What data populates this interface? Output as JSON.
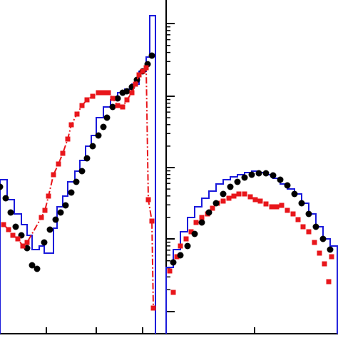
{
  "chart_data": [
    {
      "type": "scatter",
      "xlim": [
        0,
        233
      ],
      "ylim": [
        0,
        468
      ],
      "xticks": [
        65,
        135,
        200
      ],
      "histogram": {
        "color": "#1a1adb",
        "bins": [
          0,
          10,
          20,
          30,
          38,
          45,
          55,
          62,
          75,
          80,
          88,
          95,
          105,
          112,
          120,
          128,
          135,
          145,
          155,
          165,
          175,
          185,
          195,
          205,
          210,
          218
        ],
        "counts": [
          216,
          188,
          168,
          153,
          138,
          118,
          123,
          113,
          148,
          178,
          193,
          213,
          228,
          243,
          263,
          278,
          303,
          318,
          328,
          338,
          343,
          350,
          368,
          388,
          446
        ]
      },
      "series": [
        {
          "color": "#000000",
          "marker": "circle",
          "line": false,
          "x": [
            0,
            8,
            15,
            22,
            30,
            38,
            45,
            52,
            62,
            70,
            78,
            85,
            92,
            100,
            107,
            115,
            122,
            130,
            138,
            145,
            150,
            158,
            165,
            172,
            178,
            185,
            192,
            200,
            207,
            213
          ],
          "values": [
            206,
            190,
            170,
            150,
            138,
            120,
            96,
            91,
            128,
            146,
            160,
            170,
            180,
            198,
            213,
            228,
            246,
            263,
            278,
            290,
            303,
            318,
            330,
            338,
            340,
            346,
            356,
            368,
            378,
            390
          ]
        },
        {
          "color": "#e8161b",
          "marker": "square",
          "line": true,
          "x": [
            5,
            12,
            18,
            25,
            32,
            38,
            58,
            63,
            68,
            75,
            82,
            88,
            95,
            100,
            108,
            115,
            122,
            130,
            138,
            145,
            152,
            158,
            165,
            172,
            178,
            185,
            190,
            195,
            200,
            205,
            208,
            213,
            215
          ],
          "values": [
            153,
            146,
            138,
            133,
            123,
            128,
            163,
            173,
            193,
            223,
            238,
            253,
            273,
            293,
            308,
            320,
            328,
            333,
            338,
            338,
            338,
            330,
            320,
            318,
            328,
            338,
            350,
            363,
            368,
            373,
            188,
            158,
            36
          ]
        }
      ]
    },
    {
      "type": "scatter",
      "xlim": [
        0,
        241
      ],
      "ylim": [
        0,
        468
      ],
      "xticks": [
        124
      ],
      "yticks": [
        31,
        133,
        233,
        333,
        435
      ],
      "histogram": {
        "color": "#1a1adb",
        "bins": [
          0,
          10,
          20,
          30,
          40,
          50,
          60,
          70,
          80,
          90,
          100,
          110,
          120,
          130,
          140,
          150,
          160,
          170,
          180,
          190,
          200,
          210,
          220,
          230,
          240
        ],
        "counts": [
          93,
          118,
          143,
          163,
          178,
          190,
          200,
          210,
          216,
          220,
          223,
          226,
          228,
          226,
          223,
          218,
          210,
          203,
          196,
          183,
          168,
          150,
          133,
          123
        ]
      },
      "series": [
        {
          "color": "#e8161b",
          "marker": "square",
          "line": false,
          "x": [
            5,
            10,
            15,
            20,
            28,
            35,
            42,
            50,
            58,
            65,
            72,
            80,
            88,
            95,
            102,
            110,
            118,
            125,
            132,
            140,
            148,
            155,
            162,
            170,
            178,
            185,
            192,
            200,
            208,
            215,
            222,
            228,
            232
          ],
          "values": [
            88,
            58,
            108,
            123,
            133,
            143,
            156,
            163,
            168,
            176,
            183,
            186,
            190,
            193,
            196,
            196,
            192,
            188,
            186,
            182,
            178,
            178,
            180,
            173,
            168,
            160,
            150,
            143,
            128,
            113,
            98,
            73,
            108
          ]
        },
        {
          "color": "#000000",
          "marker": "circle",
          "line": false,
          "x": [
            10,
            20,
            30,
            40,
            50,
            60,
            70,
            80,
            90,
            100,
            110,
            120,
            130,
            140,
            150,
            160,
            170,
            180,
            190,
            200,
            210,
            220,
            230
          ],
          "values": [
            100,
            110,
            123,
            140,
            156,
            170,
            183,
            196,
            206,
            213,
            219,
            223,
            225,
            225,
            222,
            216,
            208,
            196,
            183,
            168,
            150,
            133,
            118
          ]
        }
      ]
    }
  ]
}
